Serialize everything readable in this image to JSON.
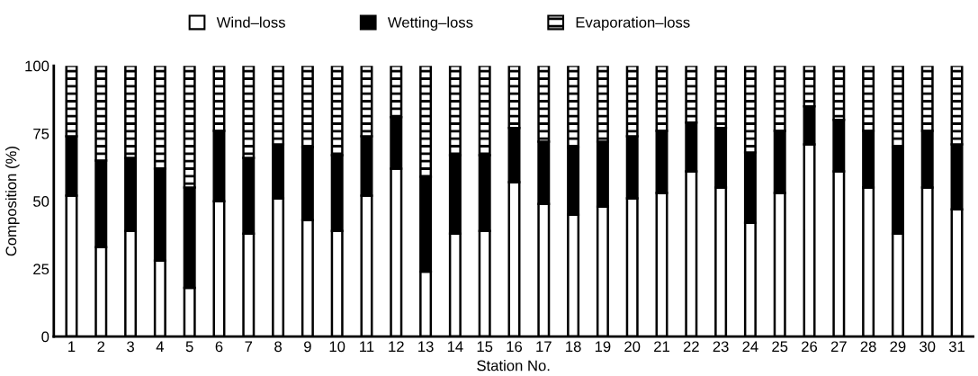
{
  "chart_data": {
    "type": "bar",
    "stacked": true,
    "xlabel": "Station No.",
    "ylabel": "Composition (%)",
    "categories": [
      "1",
      "2",
      "3",
      "4",
      "5",
      "6",
      "7",
      "8",
      "9",
      "10",
      "11",
      "12",
      "13",
      "14",
      "15",
      "16",
      "17",
      "18",
      "19",
      "20",
      "21",
      "22",
      "23",
      "24",
      "25",
      "26",
      "27",
      "28",
      "29",
      "30",
      "31"
    ],
    "series": [
      {
        "name": "Wind–loss",
        "color": "#ffffff",
        "values": [
          52,
          33,
          39,
          28,
          18,
          50,
          38,
          51,
          43,
          39,
          52,
          62,
          24,
          38,
          39,
          57,
          49,
          45,
          48,
          51,
          53,
          61,
          55,
          42,
          53,
          71,
          61,
          55,
          38,
          55,
          47
        ]
      },
      {
        "name": "Wetting–loss",
        "color": "#000000",
        "values": [
          22,
          32,
          27,
          34,
          37,
          26,
          28,
          20,
          27,
          28,
          22,
          19,
          35,
          29,
          28,
          20,
          23,
          25,
          24,
          23,
          23,
          18,
          22,
          26,
          23,
          14,
          19,
          21,
          32,
          21,
          24
        ]
      },
      {
        "name": "Evaporation–loss",
        "color": "#000000",
        "values": [
          26,
          35,
          34,
          38,
          45,
          24,
          34,
          29,
          30,
          33,
          26,
          19,
          41,
          33,
          33,
          23,
          28,
          30,
          28,
          26,
          24,
          21,
          23,
          32,
          24,
          15,
          20,
          24,
          30,
          24,
          29
        ]
      }
    ],
    "ylim": [
      0,
      100
    ],
    "yticks": [
      0,
      25,
      50,
      75,
      100
    ],
    "grid": false,
    "legend": "top"
  }
}
